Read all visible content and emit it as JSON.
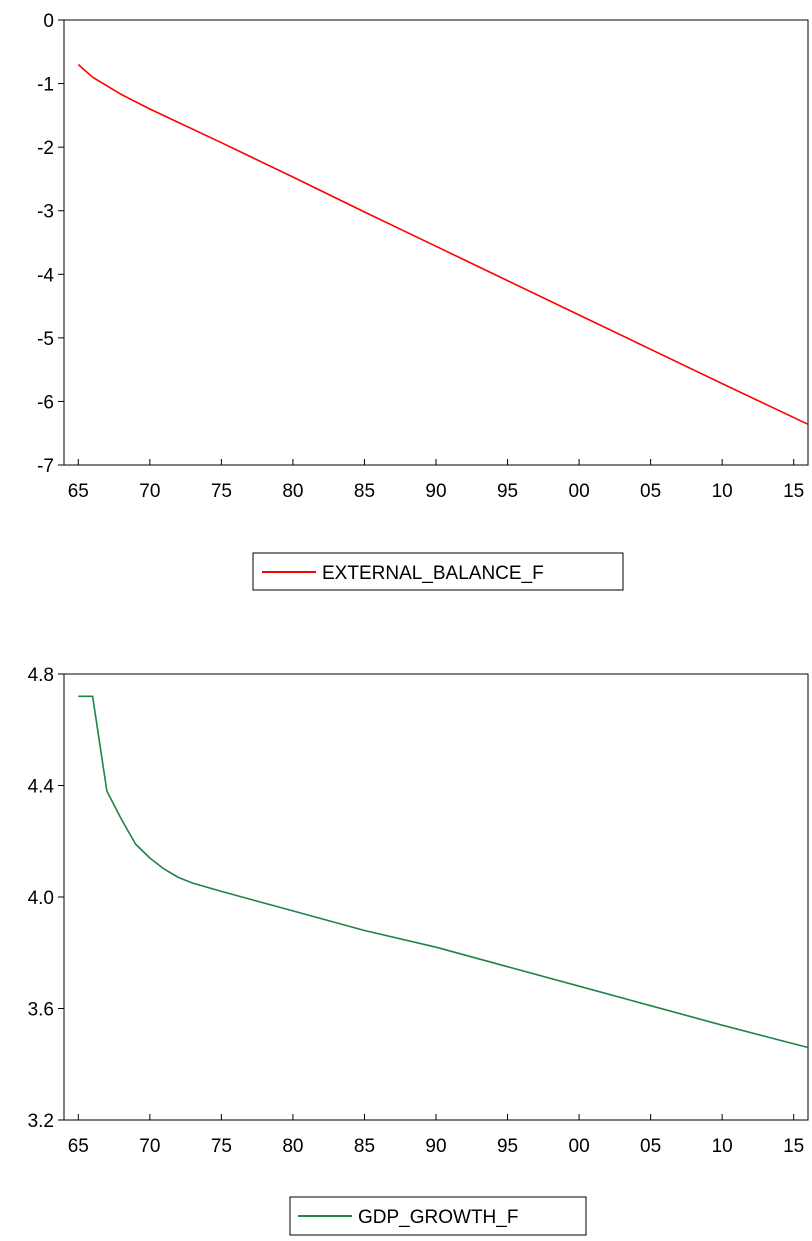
{
  "chart_data": [
    {
      "type": "line",
      "x_tick_labels": [
        "65",
        "70",
        "75",
        "80",
        "85",
        "90",
        "95",
        "00",
        "05",
        "10",
        "15"
      ],
      "x_tick_years": [
        1965,
        1970,
        1975,
        1980,
        1985,
        1990,
        1995,
        2000,
        2005,
        2010,
        2015
      ],
      "xlim": [
        1964,
        2016
      ],
      "ylim": [
        -7,
        0
      ],
      "y_ticks": [
        0,
        -1,
        -2,
        -3,
        -4,
        -5,
        -6,
        -7
      ],
      "y_tick_labels": [
        "0",
        "-1",
        "-2",
        "-3",
        "-4",
        "-5",
        "-6",
        "-7"
      ],
      "grid": false,
      "legend_position": "bottom-center",
      "series": [
        {
          "name": "EXTERNAL_BALANCE_F",
          "color": "#ff0000",
          "x": [
            1965,
            1966,
            1968,
            1970,
            1975,
            1980,
            1985,
            1990,
            1995,
            2000,
            2005,
            2010,
            2016
          ],
          "y": [
            -0.7,
            -0.9,
            -1.17,
            -1.4,
            -1.93,
            -2.47,
            -3.02,
            -3.56,
            -4.1,
            -4.64,
            -5.18,
            -5.72,
            -6.36
          ]
        }
      ]
    },
    {
      "type": "line",
      "x_tick_labels": [
        "65",
        "70",
        "75",
        "80",
        "85",
        "90",
        "95",
        "00",
        "05",
        "10",
        "15"
      ],
      "x_tick_years": [
        1965,
        1970,
        1975,
        1980,
        1985,
        1990,
        1995,
        2000,
        2005,
        2010,
        2015
      ],
      "xlim": [
        1964,
        2016
      ],
      "ylim": [
        3.2,
        4.8
      ],
      "y_ticks": [
        4.8,
        4.4,
        4.0,
        3.6,
        3.2
      ],
      "y_tick_labels": [
        "4.8",
        "4.4",
        "4.0",
        "3.6",
        "3.2"
      ],
      "grid": false,
      "legend_position": "bottom-center",
      "series": [
        {
          "name": "GDP_GROWTH_F",
          "color": "#1e8449",
          "x": [
            1965,
            1966,
            1967,
            1968,
            1969,
            1970,
            1971,
            1972,
            1973,
            1975,
            1980,
            1985,
            1990,
            1995,
            2000,
            2005,
            2010,
            2016
          ],
          "y": [
            4.72,
            4.72,
            4.38,
            4.28,
            4.19,
            4.14,
            4.1,
            4.07,
            4.05,
            4.02,
            3.95,
            3.88,
            3.82,
            3.75,
            3.68,
            3.61,
            3.54,
            3.46
          ]
        }
      ]
    }
  ]
}
